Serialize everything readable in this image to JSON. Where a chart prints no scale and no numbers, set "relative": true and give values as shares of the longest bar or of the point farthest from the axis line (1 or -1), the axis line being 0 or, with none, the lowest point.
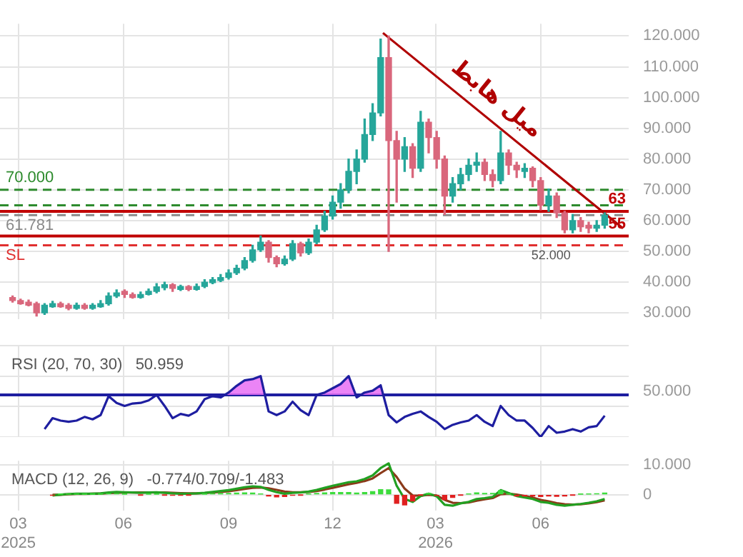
{
  "chart_data": [
    {
      "type": "candlestick",
      "x": [
        "2025-02-24",
        "2025-03-03",
        "2025-03-10",
        "2025-03-17",
        "2025-03-24",
        "2025-03-31",
        "2025-04-07",
        "2025-04-14",
        "2025-04-21",
        "2025-04-28",
        "2025-05-05",
        "2025-05-12",
        "2025-05-19",
        "2025-05-26",
        "2025-06-02",
        "2025-06-09",
        "2025-06-16",
        "2025-06-23",
        "2025-06-30",
        "2025-07-07",
        "2025-07-14",
        "2025-07-21",
        "2025-07-28",
        "2025-08-04",
        "2025-08-11",
        "2025-08-18",
        "2025-08-25",
        "2025-09-01",
        "2025-09-08",
        "2025-09-15",
        "2025-09-22",
        "2025-09-29",
        "2025-10-06",
        "2025-10-13",
        "2025-10-20",
        "2025-10-27",
        "2025-11-03",
        "2025-11-10",
        "2025-11-17",
        "2025-11-24",
        "2025-12-01",
        "2025-12-08",
        "2025-12-15",
        "2025-12-22",
        "2025-12-29",
        "2026-01-05",
        "2026-01-12",
        "2026-01-19",
        "2026-01-26",
        "2026-02-02",
        "2026-02-09",
        "2026-02-16",
        "2026-02-23",
        "2026-03-02",
        "2026-03-09",
        "2026-03-16",
        "2026-03-23",
        "2026-03-30",
        "2026-04-06",
        "2026-04-13",
        "2026-04-20",
        "2026-04-27",
        "2026-05-04",
        "2026-05-11",
        "2026-05-18",
        "2026-05-25",
        "2026-06-01",
        "2026-06-08",
        "2026-06-15",
        "2026-06-22",
        "2026-06-29",
        "2026-07-06",
        "2026-07-13",
        "2026-07-20",
        "2026-07-27"
      ],
      "ohlc": [
        [
          35,
          35.5,
          33.5,
          34
        ],
        [
          34,
          34.5,
          32.8,
          33
        ],
        [
          33.5,
          34.2,
          32.3,
          32.5
        ],
        [
          33,
          33.5,
          29,
          30
        ],
        [
          30,
          33,
          29.5,
          32.5
        ],
        [
          32,
          33.8,
          31.8,
          33
        ],
        [
          33,
          33.5,
          31.8,
          32
        ],
        [
          32.5,
          33,
          31,
          31.5
        ],
        [
          31.5,
          33.2,
          31.2,
          32.5
        ],
        [
          32.5,
          33,
          31.2,
          31.5
        ],
        [
          31.5,
          33,
          31.2,
          32.5
        ],
        [
          32,
          34,
          31.8,
          33
        ],
        [
          33,
          36.5,
          32.5,
          35.5
        ],
        [
          35.5,
          37.5,
          35,
          36.5
        ],
        [
          37,
          37.5,
          35,
          36
        ],
        [
          36,
          36.5,
          34.8,
          35
        ],
        [
          35,
          36.8,
          34.8,
          36
        ],
        [
          36,
          37.8,
          35.8,
          37
        ],
        [
          37,
          39.5,
          36.5,
          38.5
        ],
        [
          38.2,
          40,
          37.5,
          39.2
        ],
        [
          39.2,
          39.5,
          37,
          38
        ],
        [
          37.6,
          39,
          37.3,
          38.6
        ],
        [
          38.6,
          38.9,
          37.2,
          37.6
        ],
        [
          37.6,
          39.4,
          37.4,
          38.6
        ],
        [
          38.6,
          40.8,
          38.2,
          40
        ],
        [
          39.8,
          41.5,
          39.5,
          40.8
        ],
        [
          40.5,
          42.5,
          40.2,
          41.5
        ],
        [
          41.5,
          44,
          41,
          43
        ],
        [
          43,
          45.5,
          42.5,
          44.5
        ],
        [
          44.5,
          48,
          44,
          47
        ],
        [
          47,
          52,
          46.5,
          50.5
        ],
        [
          50.5,
          55,
          50,
          53
        ],
        [
          53,
          53.5,
          46.5,
          48
        ],
        [
          48,
          48.5,
          45,
          46
        ],
        [
          46,
          48.5,
          45.5,
          47.5
        ],
        [
          47.5,
          53.5,
          47,
          52.5
        ],
        [
          52.5,
          53,
          48.5,
          49.5
        ],
        [
          49.5,
          54,
          49,
          53
        ],
        [
          53,
          58.5,
          52.5,
          57
        ],
        [
          57,
          63,
          56.5,
          61.5
        ],
        [
          61.5,
          68,
          60.5,
          66
        ],
        [
          66,
          72,
          64,
          70
        ],
        [
          70,
          80,
          69,
          76
        ],
        [
          76,
          83,
          72,
          80
        ],
        [
          80,
          93,
          79,
          88
        ],
        [
          88,
          98,
          86,
          95
        ],
        [
          95,
          119,
          94,
          113
        ],
        [
          113,
          120,
          50,
          86
        ],
        [
          86,
          89,
          66,
          80
        ],
        [
          80,
          87,
          76,
          84
        ],
        [
          84,
          85,
          74,
          77
        ],
        [
          77,
          95.5,
          76,
          92
        ],
        [
          92,
          93,
          82,
          87
        ],
        [
          87,
          89,
          77,
          80
        ],
        [
          80,
          81,
          62,
          68
        ],
        [
          68,
          74,
          66,
          72
        ],
        [
          72,
          77,
          70,
          75
        ],
        [
          75,
          80,
          73,
          78
        ],
        [
          78,
          82,
          76,
          79
        ],
        [
          79,
          80,
          73,
          75
        ],
        [
          75,
          76.5,
          71,
          73
        ],
        [
          73,
          89,
          72,
          82
        ],
        [
          82,
          83,
          75,
          78
        ],
        [
          78,
          79,
          74,
          76.5
        ],
        [
          76,
          78.5,
          74,
          77
        ],
        [
          77,
          77.5,
          71,
          73
        ],
        [
          73,
          74,
          63.5,
          65
        ],
        [
          65,
          70.3,
          63,
          68
        ],
        [
          68,
          69,
          61,
          62.5
        ],
        [
          62.5,
          63,
          56,
          57
        ],
        [
          57,
          62,
          56,
          60
        ],
        [
          60,
          61,
          56.5,
          58
        ],
        [
          58.5,
          59.5,
          56,
          57.5
        ],
        [
          57.5,
          60,
          56.5,
          58.5
        ],
        [
          58.5,
          62.5,
          57.5,
          61.781
        ]
      ],
      "series": [
        {
          "type": "line",
          "color": "#b00000",
          "x": [
            "2026-01-14",
            "2026-08-12"
          ],
          "values": [
            121,
            57.5
          ]
        }
      ],
      "xlim": [
        "2025-02-13",
        "2026-08-17"
      ],
      "xticks": [
        {
          "value": "2025-03-01",
          "label": null
        },
        {
          "value": "2025-06-01",
          "label": null
        },
        {
          "value": "2025-09-01",
          "label": null
        },
        {
          "value": "2025-12-01",
          "label": null
        },
        {
          "value": "2026-03-01",
          "label": null
        },
        {
          "value": "2026-06-01",
          "label": null
        }
      ],
      "ylim": [
        28,
        124
      ],
      "yticks": [
        {
          "value": 30,
          "label": "30.000"
        },
        {
          "value": 40,
          "label": "40.000"
        },
        {
          "value": 50,
          "label": "50.000"
        },
        {
          "value": 60,
          "label": "60.000"
        },
        {
          "value": 70,
          "label": "70.000"
        },
        {
          "value": 80,
          "label": "80.000"
        },
        {
          "value": 90,
          "label": "90.000"
        },
        {
          "value": 100,
          "label": "100.000"
        },
        {
          "value": 110,
          "label": "110.000"
        },
        {
          "value": 120,
          "label": "120.000"
        }
      ],
      "ref_lines": [
        {
          "axis": "y",
          "value": 70,
          "label": "70.000",
          "color": "#2e8b2e",
          "line_style": "dashed"
        },
        {
          "axis": "y",
          "value": 65,
          "label": null,
          "color": "#2e8b2e",
          "line_style": "dashed"
        },
        {
          "axis": "y",
          "value": 63,
          "label": "63",
          "color": "#c00000",
          "line_style": "solid"
        },
        {
          "axis": "y",
          "value": 61.781,
          "label": "61.781",
          "color": "#8a8a8a",
          "line_style": "dashed"
        },
        {
          "axis": "y",
          "value": 55,
          "label": "55",
          "color": "#c00000",
          "line_style": "solid"
        },
        {
          "axis": "y",
          "value": 52,
          "label": "SL",
          "color": "#e03030",
          "line_style": "dashed"
        }
      ],
      "annotations": [
        "میل هابط",
        {
          "text": "52.000",
          "x": "2026-06-10",
          "y": 52
        }
      ],
      "grid": true,
      "tick_labels": "y"
    },
    {
      "type": "line",
      "title": "RSI (20, 70, 30)   50.959",
      "relative": true,
      "series": [
        {
          "color": "#1e1ea0",
          "x": [
            "2025-03-24",
            "2025-03-31",
            "2025-04-07",
            "2025-04-14",
            "2025-04-21",
            "2025-04-28",
            "2025-05-05",
            "2025-05-12",
            "2025-05-19",
            "2025-05-26",
            "2025-06-02",
            "2025-06-09",
            "2025-06-16",
            "2025-06-23",
            "2025-06-30",
            "2025-07-07",
            "2025-07-14",
            "2025-07-21",
            "2025-07-28",
            "2025-08-04",
            "2025-08-11",
            "2025-08-18",
            "2025-08-25",
            "2025-09-01",
            "2025-09-08",
            "2025-09-15",
            "2025-09-22",
            "2025-09-29",
            "2025-10-06",
            "2025-10-13",
            "2025-10-20",
            "2025-10-27",
            "2025-11-03",
            "2025-11-10",
            "2025-11-17",
            "2025-11-24",
            "2025-12-01",
            "2025-12-08",
            "2025-12-15",
            "2025-12-22",
            "2025-12-29",
            "2026-01-05",
            "2026-01-12",
            "2026-01-19",
            "2026-01-26",
            "2026-02-02",
            "2026-02-09",
            "2026-02-16",
            "2026-02-23",
            "2026-03-02",
            "2026-03-09",
            "2026-03-16",
            "2026-03-23",
            "2026-03-30",
            "2026-04-06",
            "2026-04-13",
            "2026-04-20",
            "2026-04-27",
            "2026-05-04",
            "2026-05-11",
            "2026-05-18",
            "2026-05-25",
            "2026-06-01",
            "2026-06-08",
            "2026-06-15",
            "2026-06-22",
            "2026-06-29",
            "2026-07-06",
            "2026-07-13",
            "2026-07-20",
            "2026-07-27"
          ],
          "values": [
            0.13,
            0.31,
            0.27,
            0.25,
            0.27,
            0.33,
            0.29,
            0.36,
            0.67,
            0.56,
            0.51,
            0.55,
            0.56,
            0.6,
            0.69,
            0.51,
            0.31,
            0.38,
            0.35,
            0.42,
            0.62,
            0.67,
            0.65,
            0.73,
            0.84,
            0.93,
            0.95,
            1,
            0.42,
            0.36,
            0.42,
            0.58,
            0.44,
            0.36,
            0.69,
            0.73,
            0.8,
            0.87,
            1,
            0.65,
            0.73,
            0.76,
            0.85,
            0.36,
            0.24,
            0.33,
            0.38,
            0.42,
            0.33,
            0.25,
            0.13,
            0.2,
            0.24,
            0.27,
            0.36,
            0.25,
            0.18,
            0.51,
            0.36,
            0.27,
            0.27,
            0.15,
            0,
            0.18,
            0.07,
            0.09,
            0.13,
            0.09,
            0.16,
            0.18,
            0.35
          ]
        }
      ],
      "xlim": [
        "2025-02-13",
        "2026-08-17"
      ],
      "xticks": [
        {
          "value": "2025-03-01",
          "label": null
        },
        {
          "value": "2025-06-01",
          "label": null
        },
        {
          "value": "2025-09-01",
          "label": null
        },
        {
          "value": "2025-12-01",
          "label": null
        },
        {
          "value": "2026-03-01",
          "label": null
        },
        {
          "value": "2026-06-01",
          "label": null
        }
      ],
      "ref_lines": [
        {
          "axis": "y",
          "value": 0.69,
          "label": null,
          "color": "#1e1ea0",
          "line_style": "solid"
        }
      ],
      "annotations": [
        "50.000"
      ],
      "grid": true,
      "tick_labels": "y"
    },
    {
      "type": "line",
      "title": "MACD (12, 26, 9)   -0.774/0.709/-1.483",
      "x": [
        "2025-03-31",
        "2025-04-07",
        "2025-04-14",
        "2025-04-21",
        "2025-04-28",
        "2025-05-05",
        "2025-05-12",
        "2025-05-19",
        "2025-05-26",
        "2025-06-02",
        "2025-06-09",
        "2025-06-16",
        "2025-06-23",
        "2025-06-30",
        "2025-07-07",
        "2025-07-14",
        "2025-07-21",
        "2025-07-28",
        "2025-08-04",
        "2025-08-11",
        "2025-08-18",
        "2025-08-25",
        "2025-09-01",
        "2025-09-08",
        "2025-09-15",
        "2025-09-22",
        "2025-09-29",
        "2025-10-06",
        "2025-10-13",
        "2025-10-20",
        "2025-10-27",
        "2025-11-03",
        "2025-11-10",
        "2025-11-17",
        "2025-11-24",
        "2025-12-01",
        "2025-12-08",
        "2025-12-15",
        "2025-12-22",
        "2025-12-29",
        "2026-01-05",
        "2026-01-12",
        "2026-01-19",
        "2026-01-26",
        "2026-02-02",
        "2026-02-09",
        "2026-02-16",
        "2026-02-23",
        "2026-03-02",
        "2026-03-09",
        "2026-03-16",
        "2026-03-23",
        "2026-03-30",
        "2026-04-06",
        "2026-04-13",
        "2026-04-20",
        "2026-04-27",
        "2026-05-04",
        "2026-05-11",
        "2026-05-18",
        "2026-05-25",
        "2026-06-01",
        "2026-06-08",
        "2026-06-15",
        "2026-06-22",
        "2026-06-29",
        "2026-07-06",
        "2026-07-13",
        "2026-07-20",
        "2026-07-27"
      ],
      "series": [
        {
          "type": "bar",
          "color": "#3ddc3d",
          "values": [
            null,
            0.1,
            0.2,
            0.2,
            0.1,
            0.1,
            0.1,
            0.3,
            0.3,
            0.1,
            null,
            null,
            0.1,
            0.1,
            null,
            null,
            null,
            null,
            null,
            0.1,
            0.3,
            0.4,
            0.4,
            0.5,
            0.6,
            0.5,
            0.2,
            null,
            null,
            null,
            null,
            null,
            0.2,
            0.4,
            0.6,
            0.7,
            0.7,
            0.7,
            0.5,
            0.7,
            1,
            1.7,
            1.6,
            null,
            null,
            null,
            null,
            0.4,
            null,
            null,
            null,
            null,
            0.2,
            0.6,
            0.4,
            0.4,
            1.4,
            0.2,
            null,
            null,
            null,
            null,
            null,
            null,
            null,
            null,
            0.1,
            0.2,
            0.3,
            0.5
          ]
        },
        {
          "type": "bar",
          "color": "#e02020",
          "values": [
            -0.2,
            null,
            null,
            null,
            null,
            null,
            null,
            null,
            null,
            null,
            null,
            -0.1,
            null,
            null,
            -0.1,
            -0.2,
            -0.2,
            -0.1,
            null,
            null,
            null,
            null,
            null,
            null,
            null,
            null,
            null,
            -0.5,
            -0.8,
            -0.7,
            -0.2,
            -0.1,
            null,
            null,
            null,
            null,
            null,
            null,
            null,
            null,
            null,
            null,
            null,
            -3,
            -3.5,
            -2.2,
            -0.1,
            null,
            -0.3,
            -1.7,
            -1,
            -0.1,
            null,
            null,
            null,
            null,
            null,
            null,
            -0.5,
            -0.5,
            -0.5,
            -0.7,
            -0.5,
            -0.6,
            -0.5,
            -0.1,
            null,
            null,
            null,
            null
          ]
        },
        {
          "color": "#22a022",
          "values": [
            -0.3,
            0,
            0.2,
            0.3,
            0.3,
            0.3,
            0.4,
            0.7,
            0.9,
            0.8,
            0.7,
            0.6,
            0.7,
            0.8,
            0.6,
            0.4,
            0.3,
            0.3,
            0.4,
            0.6,
            0.9,
            1.2,
            1.5,
            2,
            2.5,
            2.8,
            2.6,
            1.6,
            0.8,
            0.3,
            0.6,
            0.7,
            1,
            1.6,
            2.3,
            3,
            3.6,
            4.2,
            4.5,
            5.3,
            6.5,
            9,
            10.6,
            3,
            -1.5,
            -2.5,
            -0.5,
            0.3,
            -0.6,
            -3.5,
            -3.8,
            -3,
            -2.5,
            -1.5,
            -1.2,
            -0.8,
            1.5,
            0.5,
            -0.5,
            -1,
            -1.5,
            -2.5,
            -2.8,
            -3.5,
            -3.8,
            -3.5,
            -3.2,
            -2.8,
            -2.3,
            -1.5
          ]
        },
        {
          "color": "#8b3a1a",
          "values": [
            -0.1,
            -0.1,
            0.1,
            0.2,
            0.2,
            0.3,
            0.3,
            0.5,
            0.6,
            0.7,
            0.7,
            0.7,
            0.7,
            0.7,
            0.7,
            0.6,
            0.5,
            0.4,
            0.4,
            0.5,
            0.7,
            0.9,
            1.1,
            1.5,
            1.9,
            2.3,
            2.4,
            2.1,
            1.6,
            1,
            0.8,
            0.8,
            0.9,
            1.2,
            1.7,
            2.3,
            2.9,
            3.5,
            4,
            4.6,
            5.5,
            7.3,
            9,
            6,
            2,
            -0.3,
            -0.4,
            -0.1,
            -0.3,
            -1.8,
            -2.8,
            -2.9,
            -2.7,
            -2.1,
            -1.6,
            -1.2,
            0.1,
            0.3,
            0,
            -0.5,
            -1,
            -1.8,
            -2.3,
            -2.9,
            -3.3,
            -3.4,
            -3.3,
            -3,
            -2.6,
            -2
          ]
        }
      ],
      "xlim": [
        "2025-02-13",
        "2026-08-17"
      ],
      "xticks": [
        {
          "value": "2025-03-01",
          "label": "03\n2025"
        },
        {
          "value": "2025-06-01",
          "label": "06"
        },
        {
          "value": "2025-09-01",
          "label": "09"
        },
        {
          "value": "2025-12-01",
          "label": "12"
        },
        {
          "value": "2026-03-01",
          "label": "03\n2026"
        },
        {
          "value": "2026-06-01",
          "label": "06"
        }
      ],
      "ylim": [
        -5.5,
        11.5
      ],
      "yticks": [
        0,
        {
          "value": 10,
          "label": "10.000"
        }
      ],
      "grid": true
    }
  ]
}
